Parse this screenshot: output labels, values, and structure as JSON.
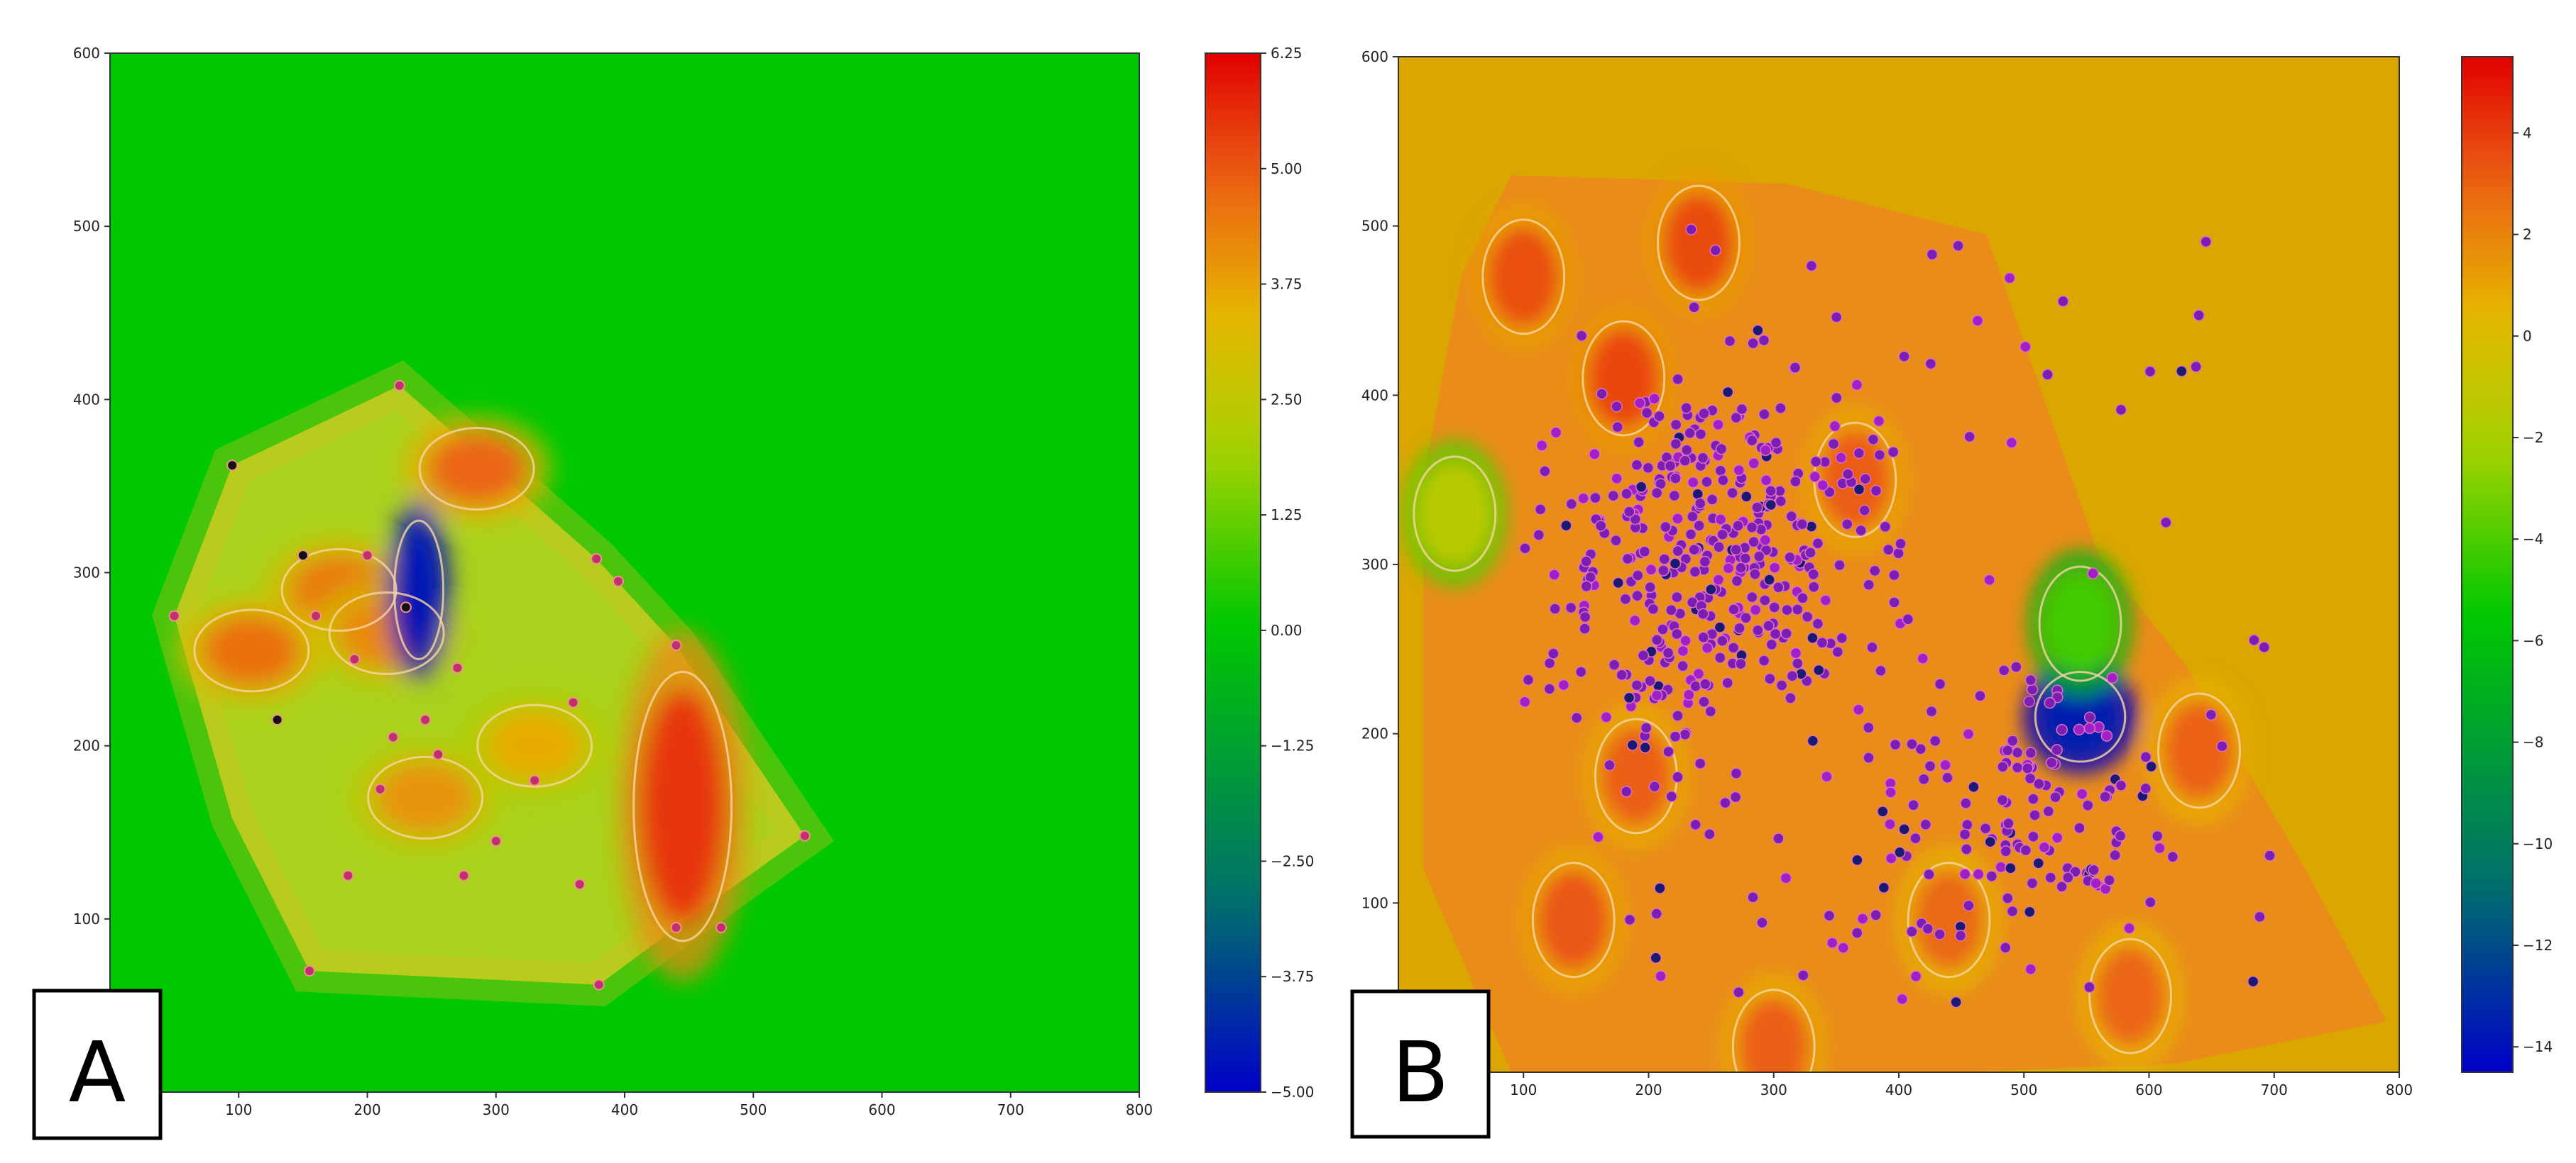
{
  "panels": [
    {
      "label": "A",
      "chart_data": {
        "type": "heatmap",
        "xlim": [
          0,
          800
        ],
        "ylim": [
          0,
          600
        ],
        "x_ticks": [
          100,
          200,
          300,
          400,
          500,
          600,
          700,
          800
        ],
        "y_ticks": [
          100,
          200,
          300,
          400,
          500,
          600
        ],
        "grid": false,
        "background_color": "#00c800",
        "colorbar": {
          "min": -5.0,
          "max": 6.25,
          "ticks": [
            "6.25",
            "5.00",
            "3.75",
            "2.50",
            "1.25",
            "0.00",
            "−1.25",
            "−2.50",
            "−3.75",
            "−5.00"
          ],
          "tick_values": [
            6.25,
            5.0,
            3.75,
            2.5,
            1.25,
            0.0,
            -1.25,
            -2.5,
            -3.75,
            -5.0
          ]
        },
        "hull": [
          [
            225,
            408
          ],
          [
            378,
            308
          ],
          [
            440,
            258
          ],
          [
            540,
            148
          ],
          [
            440,
            95
          ],
          [
            380,
            62
          ],
          [
            155,
            70
          ],
          [
            95,
            158
          ],
          [
            50,
            275
          ],
          [
            95,
            362
          ]
        ],
        "hotspots": [
          {
            "x": 445,
            "y": 165,
            "value": 5.5
          },
          {
            "x": 285,
            "y": 360,
            "value": 4.8
          },
          {
            "x": 110,
            "y": 255,
            "value": 4.6
          },
          {
            "x": 178,
            "y": 290,
            "value": 4.4
          },
          {
            "x": 215,
            "y": 265,
            "value": 4.2
          },
          {
            "x": 245,
            "y": 170,
            "value": 4.0
          },
          {
            "x": 330,
            "y": 200,
            "value": 3.6
          },
          {
            "x": 240,
            "y": 290,
            "value": -4.6
          }
        ],
        "points": [
          [
            95,
            362
          ],
          [
            225,
            408
          ],
          [
            378,
            308
          ],
          [
            440,
            258
          ],
          [
            540,
            148
          ],
          [
            440,
            95
          ],
          [
            380,
            62
          ],
          [
            155,
            70
          ],
          [
            50,
            275
          ],
          [
            130,
            215
          ],
          [
            160,
            275
          ],
          [
            200,
            310
          ],
          [
            220,
            205
          ],
          [
            245,
            215
          ],
          [
            300,
            145
          ],
          [
            360,
            225
          ],
          [
            395,
            295
          ],
          [
            475,
            95
          ],
          [
            150,
            310
          ],
          [
            270,
            245
          ],
          [
            210,
            175
          ],
          [
            185,
            125
          ],
          [
            330,
            180
          ],
          [
            255,
            195
          ],
          [
            275,
            125
          ],
          [
            365,
            120
          ],
          [
            190,
            250
          ],
          [
            230,
            280
          ]
        ]
      }
    },
    {
      "label": "B",
      "chart_data": {
        "type": "heatmap",
        "xlim": [
          0,
          800
        ],
        "ylim": [
          0,
          600
        ],
        "x_ticks": [
          100,
          200,
          300,
          400,
          500,
          600,
          700,
          800
        ],
        "y_ticks": [
          100,
          200,
          300,
          400,
          500,
          600
        ],
        "grid": false,
        "background_color": "#dba600",
        "colorbar": {
          "min": -14.5,
          "max": 5.5,
          "ticks": [
            "4",
            "2",
            "0",
            "−2",
            "−4",
            "−6",
            "−8",
            "−10",
            "−12",
            "−14"
          ],
          "tick_values": [
            4,
            2,
            0,
            -2,
            -4,
            -6,
            -8,
            -10,
            -12,
            -14
          ]
        },
        "hull": [
          [
            90,
            530
          ],
          [
            310,
            525
          ],
          [
            470,
            495
          ],
          [
            560,
            305
          ],
          [
            630,
            240
          ],
          [
            725,
            120
          ],
          [
            790,
            30
          ],
          [
            620,
            5
          ],
          [
            450,
            0
          ],
          [
            90,
            0
          ],
          [
            20,
            120
          ],
          [
            20,
            350
          ],
          [
            50,
            470
          ]
        ],
        "hotspots": [
          {
            "x": 545,
            "y": 210,
            "value": -13.5
          },
          {
            "x": 545,
            "y": 265,
            "value": -4.2
          },
          {
            "x": 45,
            "y": 330,
            "value": -1.5
          },
          {
            "x": 100,
            "y": 470,
            "value": 3.5
          },
          {
            "x": 240,
            "y": 490,
            "value": 3.6
          },
          {
            "x": 180,
            "y": 410,
            "value": 3.7
          },
          {
            "x": 365,
            "y": 350,
            "value": 3.2
          },
          {
            "x": 190,
            "y": 175,
            "value": 3.1
          },
          {
            "x": 140,
            "y": 90,
            "value": 3.3
          },
          {
            "x": 640,
            "y": 190,
            "value": 3.0
          },
          {
            "x": 440,
            "y": 90,
            "value": 2.8
          },
          {
            "x": 585,
            "y": 45,
            "value": 2.9
          },
          {
            "x": 300,
            "y": 15,
            "value": 3.1
          }
        ],
        "dense_cluster": {
          "count": 620,
          "seed": 7
        }
      }
    }
  ]
}
